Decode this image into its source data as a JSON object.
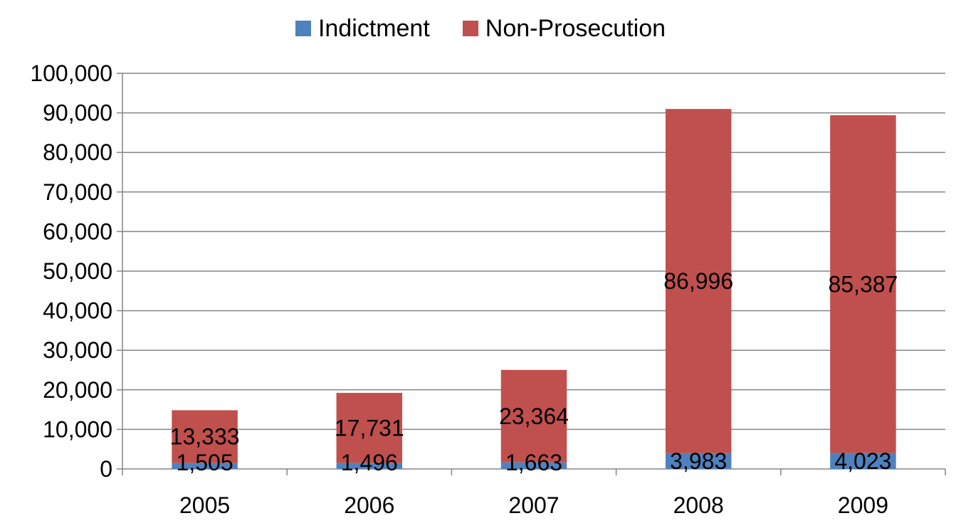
{
  "chart_data": {
    "type": "bar",
    "stacked": true,
    "categories": [
      "2005",
      "2006",
      "2007",
      "2008",
      "2009"
    ],
    "series": [
      {
        "name": "Indictment",
        "color": "#4F81BD",
        "values": [
          1505,
          1496,
          1663,
          3983,
          4023
        ],
        "labels": [
          "1,505",
          "1,496",
          "1,663",
          "3,983",
          "4,023"
        ]
      },
      {
        "name": "Non-Prosecution",
        "color": "#C0504D",
        "values": [
          13333,
          17731,
          23364,
          86996,
          85387
        ],
        "labels": [
          "13,333",
          "17,731",
          "23,364",
          "86,996",
          "85,387"
        ]
      }
    ],
    "ylim": [
      0,
      100000
    ],
    "yticks": [
      0,
      10000,
      20000,
      30000,
      40000,
      50000,
      60000,
      70000,
      80000,
      90000,
      100000
    ],
    "ytick_labels": [
      "0",
      "10,000",
      "20,000",
      "30,000",
      "40,000",
      "50,000",
      "60,000",
      "70,000",
      "80,000",
      "90,000",
      "100,000"
    ],
    "grid": true,
    "legend_position": "top"
  }
}
